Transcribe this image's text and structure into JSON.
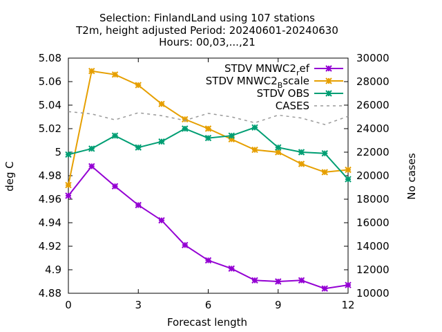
{
  "chart_data": {
    "type": "line",
    "title_lines": [
      "Selection: FinlandLand using   107 stations",
      "T2m, height adjusted   Period: 20240601-20240630",
      "Hours: 00,03,...,21"
    ],
    "xlabel": "Forecast length",
    "ylabel": "deg C",
    "y2label": "No cases",
    "x": [
      0,
      1,
      2,
      3,
      4,
      5,
      6,
      7,
      8,
      9,
      10,
      11,
      12
    ],
    "xlim": [
      0,
      12
    ],
    "xticks": [
      0,
      3,
      6,
      9,
      12
    ],
    "ylim": [
      4.88,
      5.08
    ],
    "yticks": [
      4.88,
      4.9,
      4.92,
      4.94,
      4.96,
      4.98,
      5,
      5.02,
      5.04,
      5.06,
      5.08
    ],
    "ytick_labels": [
      "4.88",
      "4.9",
      "4.92",
      "4.94",
      "4.96",
      "4.98",
      "5",
      "5.02",
      "5.04",
      "5.06",
      "5.08"
    ],
    "y2lim": [
      10000,
      30000
    ],
    "y2ticks": [
      10000,
      12000,
      14000,
      16000,
      18000,
      20000,
      22000,
      24000,
      26000,
      28000,
      30000
    ],
    "grid": false,
    "legend_position": "top-right",
    "series": [
      {
        "name": "STDV MNWC2",
        "name_sub": "r",
        "name_tail": "ef",
        "color": "#9400d3",
        "axis": "y",
        "marker": "star",
        "values": [
          4.963,
          4.988,
          4.971,
          4.955,
          4.942,
          4.921,
          4.908,
          4.901,
          4.891,
          4.89,
          4.891,
          4.884,
          4.887
        ]
      },
      {
        "name": "STDV MNWC2",
        "name_sub": "B",
        "name_tail": "scale",
        "color": "#e69f00",
        "axis": "y",
        "marker": "star",
        "values": [
          4.972,
          5.069,
          5.066,
          5.057,
          5.041,
          5.028,
          5.02,
          5.011,
          5.002,
          5.0,
          4.99,
          4.983,
          4.985
        ]
      },
      {
        "name": "STDV OBS",
        "color": "#009e73",
        "axis": "y",
        "marker": "star",
        "values": [
          4.998,
          5.003,
          5.014,
          5.004,
          5.009,
          5.02,
          5.012,
          5.014,
          5.021,
          5.004,
          5.0,
          4.999,
          4.977
        ]
      },
      {
        "name": "CASES",
        "color": "#999999",
        "axis": "y2",
        "dashed": true,
        "values": [
          25450,
          25250,
          24750,
          25350,
          25100,
          24700,
          25300,
          25000,
          24500,
          25150,
          24900,
          24350,
          25050
        ]
      }
    ]
  }
}
